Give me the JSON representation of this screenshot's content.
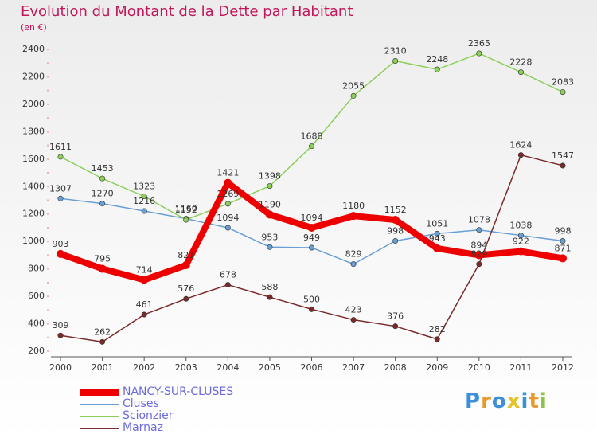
{
  "title": "Evolution du Montant de la Dette par Habitant",
  "unit_label": "(en €)",
  "brand": {
    "text": "Proxiti",
    "letter_colors": [
      "#3c8fd8",
      "#e89a2a",
      "#3c8fd8",
      "#e6c12a",
      "#3c8fd8",
      "#e89a2a",
      "#8bc34a"
    ]
  },
  "chart_data": {
    "type": "line",
    "x": [
      "2000",
      "2001",
      "2002",
      "2003",
      "2004",
      "2005",
      "2006",
      "2007",
      "2008",
      "2009",
      "2010",
      "2011",
      "2012"
    ],
    "ylim": [
      200,
      2400
    ],
    "y_ticks": [
      "200",
      "400",
      "600",
      "800",
      "1000",
      "1200",
      "1400",
      "1600",
      "1800",
      "2000",
      "2200",
      "2400"
    ],
    "grid": false,
    "legend_position": "bottom-left",
    "series": [
      {
        "name": "Cluses",
        "color": "#6a9fd4",
        "values": [
          1307,
          1270,
          1216,
          1160,
          1094,
          953,
          949,
          829,
          998,
          1051,
          1078,
          1038,
          998
        ],
        "labels": [
          "1307",
          "1270",
          "1216",
          "1160",
          "1094",
          "953",
          "949",
          "829",
          "998",
          "1051",
          "1078",
          "1038",
          "998"
        ]
      },
      {
        "name": "Scionzier",
        "color": "#8dcf5a",
        "values": [
          1611,
          1453,
          1323,
          1152,
          1269,
          1398,
          1688,
          2055,
          2310,
          2248,
          2365,
          2228,
          2083
        ],
        "labels": [
          "1611",
          "1453",
          "1323",
          "1152",
          "1269",
          "1398",
          "1688",
          "2055",
          "2310",
          "2248",
          "2365",
          "2228",
          "2083"
        ]
      },
      {
        "name": "Marnaz",
        "color": "#7a2a2a",
        "values": [
          309,
          262,
          461,
          576,
          678,
          588,
          500,
          423,
          376,
          282,
          829,
          1624,
          1547
        ],
        "labels": [
          "309",
          "262",
          "461",
          "576",
          "678",
          "588",
          "500",
          "423",
          "376",
          "282",
          "829",
          "1624",
          "1547"
        ]
      },
      {
        "name": "NANCY-SUR-CLUSES",
        "color": "#ee0000",
        "values": [
          903,
          795,
          714,
          821,
          1421,
          1190,
          1094,
          1180,
          1152,
          943,
          894,
          922,
          871
        ],
        "labels": [
          "903",
          "795",
          "714",
          "821",
          "1421",
          "1190",
          "1094",
          "1180",
          "1152",
          "943",
          "894",
          "922",
          "871"
        ]
      }
    ]
  },
  "legend": [
    {
      "name": "NANCY-SUR-CLUSES",
      "color": "#ee0000"
    },
    {
      "name": "Cluses",
      "color": "#6a9fd4"
    },
    {
      "name": "Scionzier",
      "color": "#8dcf5a"
    },
    {
      "name": "Marnaz",
      "color": "#7a2a2a"
    }
  ]
}
